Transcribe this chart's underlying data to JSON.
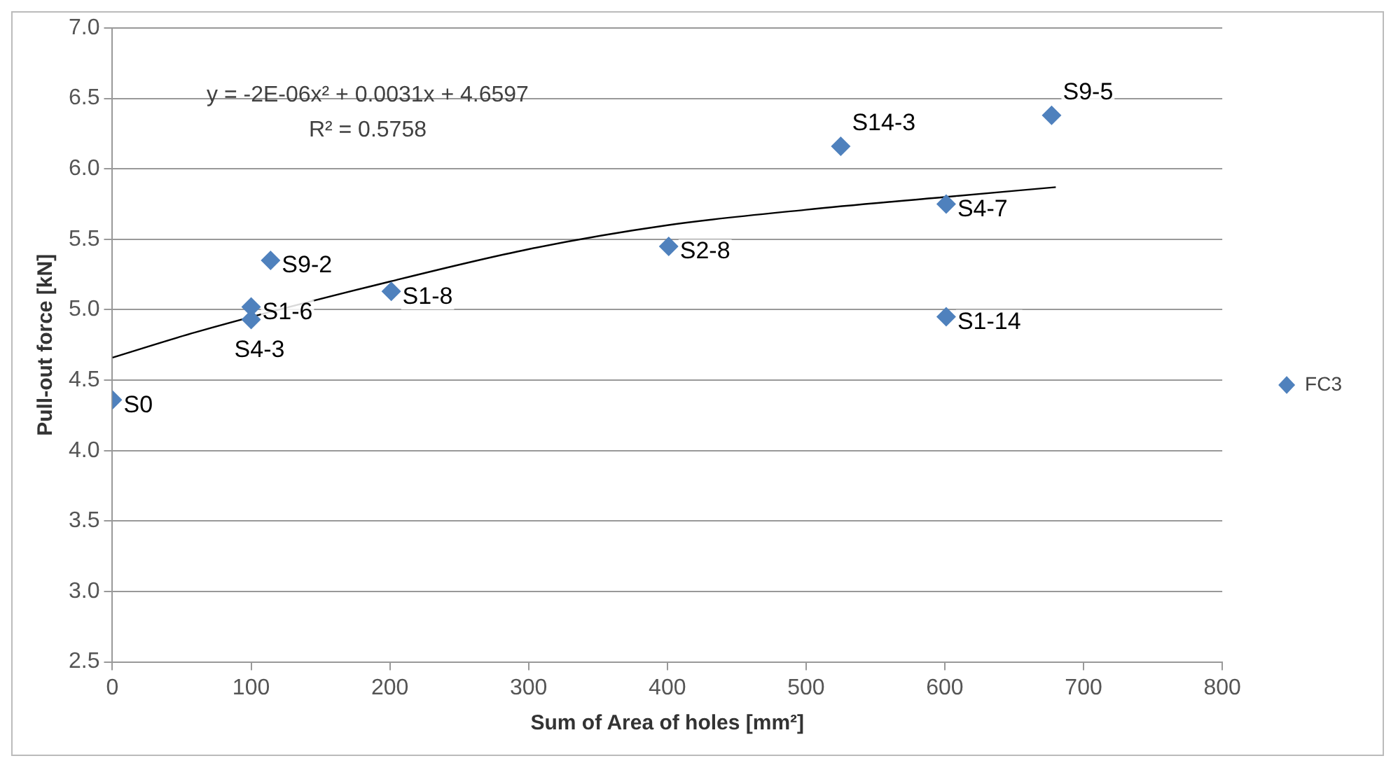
{
  "chart_data": {
    "type": "scatter",
    "xlabel": "Sum of Area of holes [mm²]",
    "ylabel": "Pull-out force [kN]",
    "xlim": [
      0,
      800
    ],
    "xticks": [
      0,
      100,
      200,
      300,
      400,
      500,
      600,
      700,
      800
    ],
    "ylim": [
      2.5,
      7.0
    ],
    "yticks": [
      {
        "value": 2.5,
        "label": "2.5"
      },
      {
        "value": 3.0,
        "label": "3.0"
      },
      {
        "value": 3.5,
        "label": "3.5"
      },
      {
        "value": 4.0,
        "label": "4.0"
      },
      {
        "value": 4.5,
        "label": "4.5"
      },
      {
        "value": 5.0,
        "label": "5.0"
      },
      {
        "value": 5.5,
        "label": "5.5"
      },
      {
        "value": 6.0,
        "label": "6.0"
      },
      {
        "value": 6.5,
        "label": "6.5"
      },
      {
        "value": 7.0,
        "label": "7.0"
      }
    ],
    "grid": "y",
    "legend": "right",
    "marker": "diamond",
    "series": [
      {
        "name": "FC3",
        "color": "#4f81bd",
        "x": [
          0,
          100,
          100,
          114,
          201,
          401,
          525,
          601,
          601,
          677
        ],
        "values": [
          4.36,
          4.93,
          5.02,
          5.35,
          5.13,
          5.45,
          6.16,
          5.75,
          4.95,
          6.38
        ]
      },
      {
        "type": "line",
        "color": "#000000",
        "marker": "none",
        "x": [
          0,
          60,
          200,
          300,
          400,
          500,
          600,
          680
        ],
        "values": [
          4.66,
          4.84,
          5.2,
          5.43,
          5.6,
          5.71,
          5.8,
          5.87
        ]
      }
    ],
    "annotations": [
      "y = -2E-06x² + 0.0031x + 4.6597",
      "R² = 0.5758",
      {
        "text": "S0",
        "x": 0,
        "y": 4.36
      },
      {
        "text": "S1-6",
        "x": 100,
        "y": 5.02
      },
      {
        "text": "S4-3",
        "x": 100,
        "y": 4.93
      },
      {
        "text": "S9-2",
        "x": 114,
        "y": 5.35
      },
      {
        "text": "S1-8",
        "x": 201,
        "y": 5.13
      },
      {
        "text": "S2-8",
        "x": 401,
        "y": 5.45
      },
      {
        "text": "S14-3",
        "x": 525,
        "y": 6.16
      },
      {
        "text": "S4-7",
        "x": 601,
        "y": 5.75
      },
      {
        "text": "S1-14",
        "x": 601,
        "y": 4.95
      },
      {
        "text": "S9-5",
        "x": 677,
        "y": 6.38
      }
    ]
  }
}
